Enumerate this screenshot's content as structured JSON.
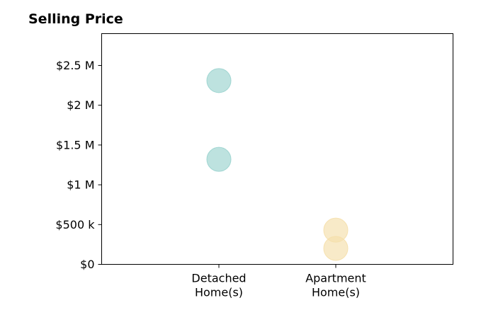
{
  "chart_data": {
    "type": "scatter",
    "title": "Selling Price",
    "xlabel": "",
    "ylabel": "",
    "categories": [
      "Detached\nHome(s)",
      "Apartment\nHome(s)"
    ],
    "ylim": [
      0,
      2900000
    ],
    "yticks": [
      {
        "value": 0,
        "label": "$0"
      },
      {
        "value": 500000,
        "label": "$500 k"
      },
      {
        "value": 1000000,
        "label": "$1 M"
      },
      {
        "value": 1500000,
        "label": "$1.5 M"
      },
      {
        "value": 2000000,
        "label": "$2 M"
      },
      {
        "value": 2500000,
        "label": "$2.5 M"
      }
    ],
    "grid": false,
    "points": [
      {
        "category": 0,
        "value": 2310000,
        "color": "#99d3ce"
      },
      {
        "category": 0,
        "value": 1320000,
        "color": "#99d3ce"
      },
      {
        "category": 1,
        "value": 430000,
        "color": "#f5dfaa"
      },
      {
        "category": 1,
        "value": 200000,
        "color": "#f5dfaa"
      }
    ],
    "point_colors": {
      "Detached": "#99d3ce",
      "Apartment": "#f5dfaa"
    }
  }
}
